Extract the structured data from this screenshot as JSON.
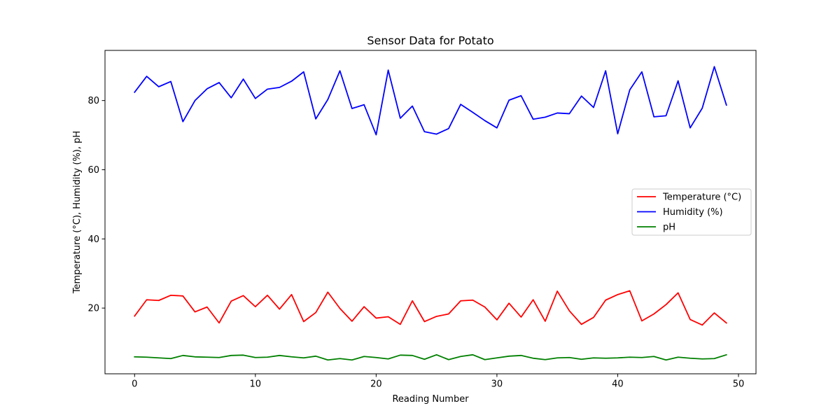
{
  "chart_data": {
    "type": "line",
    "title": "Sensor Data for Potato",
    "xlabel": "Reading Number",
    "ylabel": "Temperature (°C), Humidity (%), pH",
    "xlim": [
      -2.45,
      51.45
    ],
    "ylim": [
      1.0,
      94.5
    ],
    "xticks": [
      0,
      10,
      20,
      30,
      40,
      50
    ],
    "yticks": [
      20,
      40,
      60,
      80
    ],
    "grid": false,
    "legend_position": "center-right",
    "x": [
      0,
      1,
      2,
      3,
      4,
      5,
      6,
      7,
      8,
      9,
      10,
      11,
      12,
      13,
      14,
      15,
      16,
      17,
      18,
      19,
      20,
      21,
      22,
      23,
      24,
      25,
      26,
      27,
      28,
      29,
      30,
      31,
      32,
      33,
      34,
      35,
      36,
      37,
      38,
      39,
      40,
      41,
      42,
      43,
      44,
      45,
      46,
      47,
      48,
      49
    ],
    "series": [
      {
        "name": "Temperature (°C)",
        "color": "#ff0000",
        "values": [
          17.7,
          22.4,
          22.2,
          23.7,
          23.5,
          18.9,
          20.3,
          15.7,
          22.0,
          23.6,
          20.4,
          23.7,
          19.7,
          23.9,
          16.1,
          18.7,
          24.6,
          19.9,
          16.2,
          20.4,
          17.1,
          17.5,
          15.3,
          22.1,
          16.1,
          17.6,
          18.3,
          22.1,
          22.3,
          20.3,
          16.6,
          21.4,
          17.4,
          22.4,
          16.2,
          24.9,
          19.2,
          15.3,
          17.3,
          22.3,
          23.9,
          25.0,
          16.3,
          18.3,
          21.0,
          24.4,
          16.7,
          15.1,
          18.6,
          15.7
        ]
      },
      {
        "name": "Humidity (%)",
        "color": "#0000ff",
        "values": [
          82.4,
          87.0,
          84.0,
          85.5,
          73.9,
          80.0,
          83.4,
          85.2,
          80.8,
          86.2,
          80.6,
          83.3,
          83.8,
          85.6,
          88.3,
          74.7,
          80.3,
          88.6,
          77.7,
          78.8,
          70.1,
          88.8,
          74.9,
          78.4,
          71.0,
          70.3,
          71.9,
          78.9,
          76.6,
          74.2,
          72.1,
          80.1,
          81.4,
          74.6,
          75.2,
          76.4,
          76.2,
          81.3,
          78.0,
          88.6,
          70.4,
          83.1,
          88.3,
          75.3,
          75.6,
          85.7,
          72.1,
          77.8,
          89.8,
          78.7
        ]
      },
      {
        "name": "pH",
        "color": "#008000",
        "values": [
          5.9,
          5.8,
          5.6,
          5.4,
          6.3,
          5.9,
          5.8,
          5.7,
          6.3,
          6.4,
          5.7,
          5.8,
          6.3,
          5.9,
          5.6,
          6.1,
          5.0,
          5.4,
          5.0,
          6.0,
          5.7,
          5.3,
          6.4,
          6.3,
          5.2,
          6.5,
          5.1,
          6.0,
          6.5,
          5.1,
          5.6,
          6.1,
          6.3,
          5.5,
          5.1,
          5.6,
          5.7,
          5.2,
          5.6,
          5.5,
          5.6,
          5.8,
          5.7,
          6.0,
          5.0,
          5.8,
          5.5,
          5.3,
          5.4,
          6.5
        ]
      }
    ]
  }
}
